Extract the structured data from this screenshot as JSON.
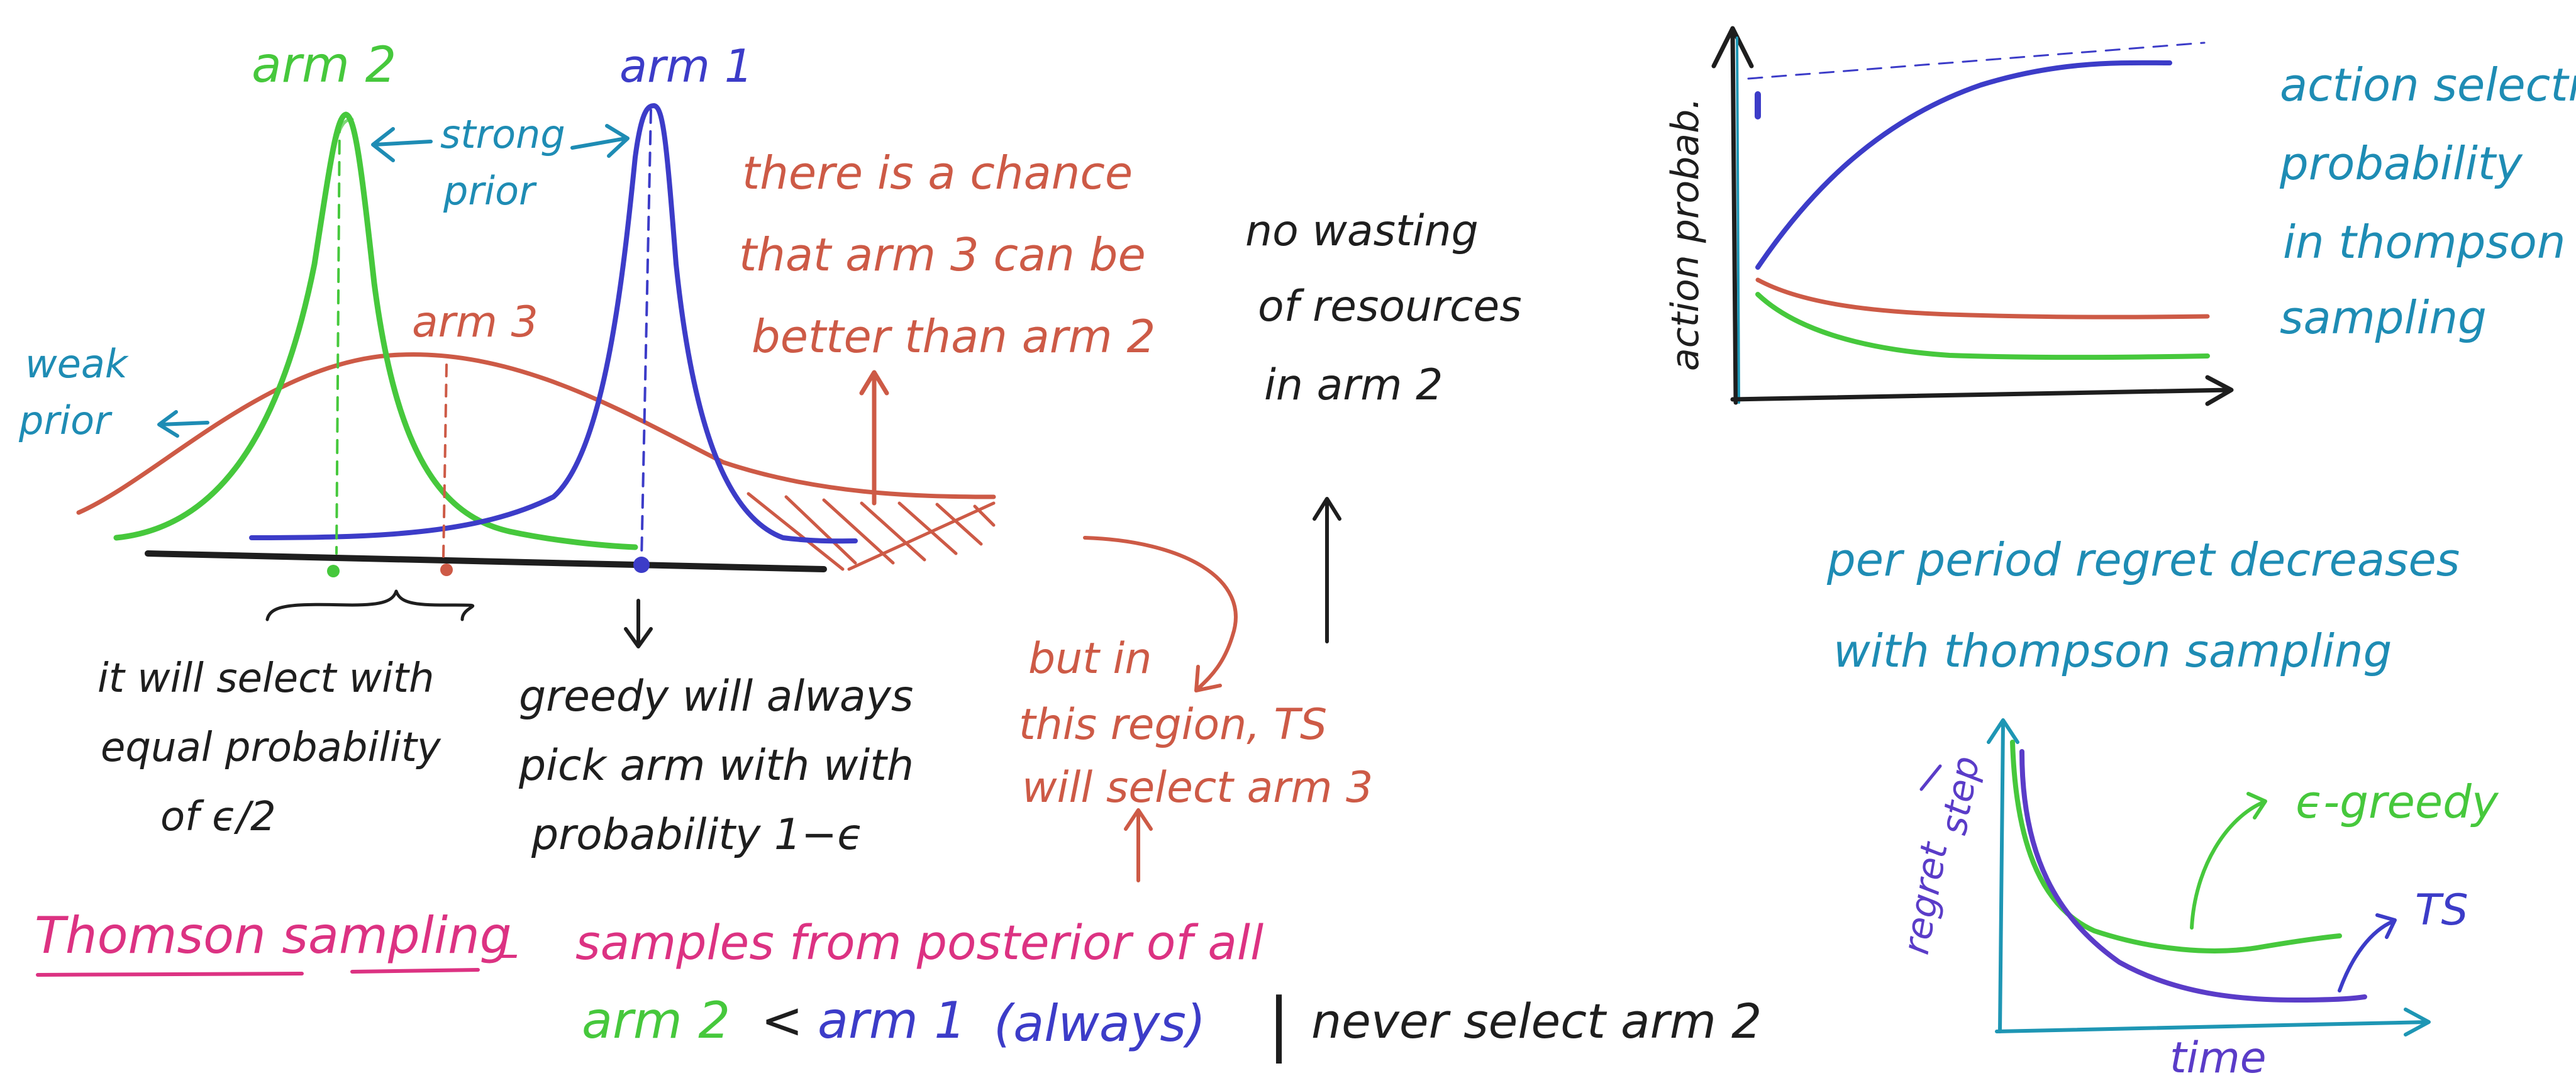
{
  "colors": {
    "green": "#46c83c",
    "blue": "#3c3cc8",
    "red": "#cd5a46",
    "teal": "#1e8cb4",
    "black": "#1e1e1e",
    "pink": "#dc3282",
    "purple": "#5a3cc8",
    "axis_blue": "#1e96b4"
  },
  "left_diagram": {
    "arm2_label": "arm 2",
    "arm1_label": "arm 1",
    "arm3_label": "arm 3",
    "strong_prior_line1": "strong",
    "strong_prior_line2": "prior",
    "weak_prior_line1": "weak",
    "weak_prior_line2": "prior",
    "chance_line1": "there is a chance",
    "chance_line2": "that arm 3 can be",
    "chance_line3": "better than arm 2",
    "equal_line1": "it will select with",
    "equal_line2": "equal probability",
    "equal_line3": "of ϵ/2",
    "greedy_line1": "greedy will always",
    "greedy_line2": "pick arm with with",
    "greedy_line3": "probability 1−ϵ",
    "ts_region_line1": "but in",
    "ts_region_line2": "this region, TS",
    "ts_region_line3": "will select arm 3",
    "no_wasting_line1": "no wasting",
    "no_wasting_line2": "of resources",
    "no_wasting_line3": "in arm 2"
  },
  "bottom": {
    "thompson_label": "Thomson sampling",
    "dash": "–",
    "samples_text": "samples from posterior of all",
    "arm2": "arm 2",
    "less_than": "<",
    "arm1_always": "arm 1",
    "always": "(always)",
    "separator": "|",
    "never_select": "never select arm 2"
  },
  "top_right_chart": {
    "ylabel": "action probab.",
    "caption_line1": "action selectn",
    "caption_line2": "probability",
    "caption_line3": "in thompson",
    "caption_line4": "sampling"
  },
  "regret": {
    "caption_line1": "per period regret decreases",
    "caption_line2": "with thompson sampling",
    "ylabel_line1": "regret",
    "ylabel_line2": "step",
    "xlabel": "time",
    "legend_egreedy": "ϵ-greedy",
    "legend_ts": "TS"
  }
}
